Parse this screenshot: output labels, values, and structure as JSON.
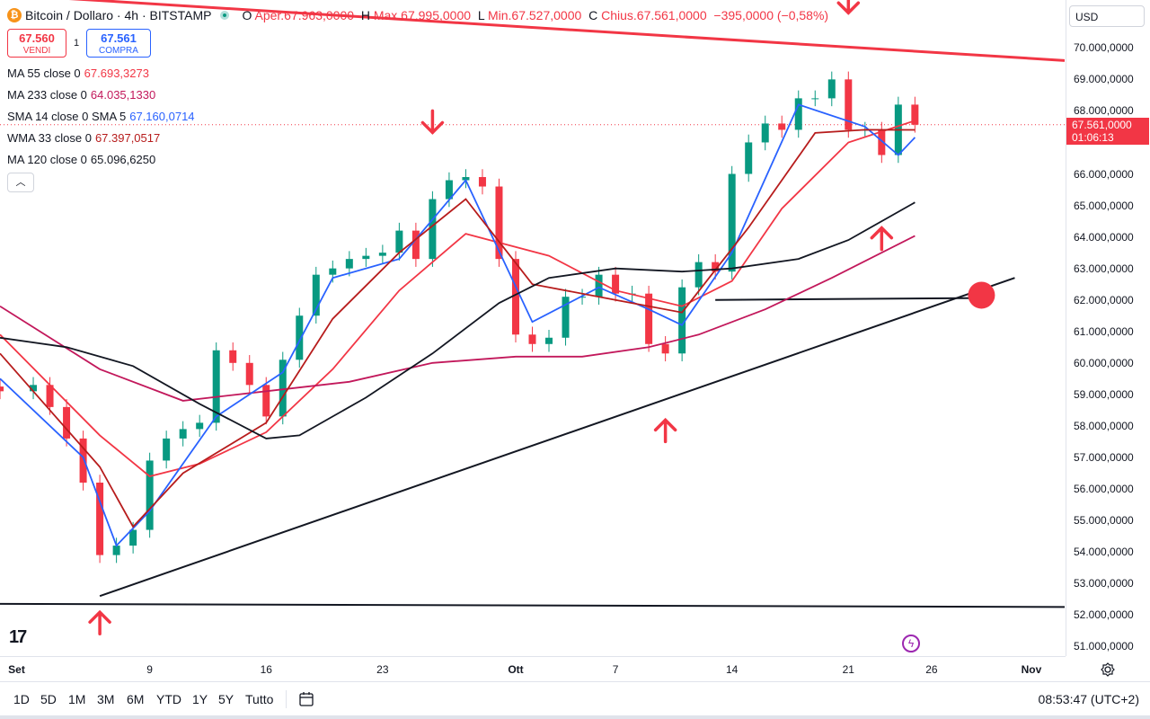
{
  "header": {
    "symbol_title": "Bitcoin / Dollaro · 4h · BITSTAMP",
    "ohlc": [
      {
        "label": "O",
        "value": "Aper.67.963,0000"
      },
      {
        "label": "H",
        "value": "Max.67.995,0000"
      },
      {
        "label": "L",
        "value": "Min.67.527,0000"
      },
      {
        "label": "C",
        "value": "Chius.67.561,0000"
      }
    ],
    "change": "−395,0000 (−0,58%)",
    "icons": {
      "symbol": "bitcoin-icon",
      "status": "market-open-dot-icon"
    }
  },
  "trade": {
    "sell_price": "67.560",
    "sell_label": "VENDI",
    "spread": "1",
    "buy_price": "67.561",
    "buy_label": "COMPRA"
  },
  "indicators": [
    {
      "name": "MA 55 close 0",
      "value": "67.693,3273",
      "color": "#f23645"
    },
    {
      "name": "MA 233 close 0",
      "value": "64.035,1330",
      "color": "#c2185b"
    },
    {
      "name": "SMA 14 close 0 SMA 5",
      "value": "67.160,0714",
      "color": "#2962ff"
    },
    {
      "name": "WMA 33 close 0",
      "value": "67.397,0517",
      "color": "#b71c1c"
    },
    {
      "name": "MA 120 close 0",
      "value": "65.096,6250",
      "color": "#131722"
    }
  ],
  "price_axis": {
    "currency": "USD",
    "labels": [
      {
        "text": "70.000,0000",
        "value": 70000
      },
      {
        "text": "69.000,0000",
        "value": 69000
      },
      {
        "text": "68.000,0000",
        "value": 68000
      },
      {
        "text": "66.000,0000",
        "value": 66000
      },
      {
        "text": "65.000,0000",
        "value": 65000
      },
      {
        "text": "64.000,0000",
        "value": 64000
      },
      {
        "text": "63.000,0000",
        "value": 63000
      },
      {
        "text": "62.000,0000",
        "value": 62000
      },
      {
        "text": "61.000,0000",
        "value": 61000
      },
      {
        "text": "60.000,0000",
        "value": 60000
      },
      {
        "text": "59.000,0000",
        "value": 59000
      },
      {
        "text": "58.000,0000",
        "value": 58000
      },
      {
        "text": "57.000,0000",
        "value": 57000
      },
      {
        "text": "56.000,0000",
        "value": 56000
      },
      {
        "text": "55.000,0000",
        "value": 55000
      },
      {
        "text": "54.000,0000",
        "value": 54000
      },
      {
        "text": "53.000,0000",
        "value": 53000
      },
      {
        "text": "52.000,0000",
        "value": 52000
      },
      {
        "text": "51.000,0000",
        "value": 51000
      }
    ],
    "current_price": "67.561,0000",
    "countdown": "01:06:13",
    "current_value": 67561
  },
  "time_axis": [
    {
      "text": "Set",
      "date": "2024-09-01"
    },
    {
      "text": "9",
      "date": "2024-09-09"
    },
    {
      "text": "16",
      "date": "2024-09-16"
    },
    {
      "text": "23",
      "date": "2024-09-23"
    },
    {
      "text": "Ott",
      "date": "2024-10-01"
    },
    {
      "text": "7",
      "date": "2024-10-07"
    },
    {
      "text": "14",
      "date": "2024-10-14"
    },
    {
      "text": "21",
      "date": "2024-10-21"
    },
    {
      "text": "26",
      "date": "2024-10-26"
    },
    {
      "text": "Nov",
      "date": "2024-11-01"
    }
  ],
  "range_buttons": [
    "1D",
    "5D",
    "1M",
    "3M",
    "6M",
    "YTD",
    "1Y",
    "5Y",
    "Tutto"
  ],
  "clock": "08:53:47 (UTC+2)",
  "colors": {
    "up": "#089981",
    "down": "#f23645",
    "accent": "#2962ff",
    "annotation": "#f23645"
  },
  "chart_data": {
    "type": "candlestick",
    "close_series": [
      {
        "date": "2024-08-31",
        "close": 59100
      },
      {
        "date": "2024-09-02",
        "close": 59300
      },
      {
        "date": "2024-09-03",
        "close": 58600
      },
      {
        "date": "2024-09-04",
        "close": 57600
      },
      {
        "date": "2024-09-05",
        "close": 56200
      },
      {
        "date": "2024-09-06",
        "close": 53900
      },
      {
        "date": "2024-09-07",
        "close": 54200
      },
      {
        "date": "2024-09-08",
        "close": 54700
      },
      {
        "date": "2024-09-09",
        "close": 56900
      },
      {
        "date": "2024-09-10",
        "close": 57600
      },
      {
        "date": "2024-09-11",
        "close": 57900
      },
      {
        "date": "2024-09-12",
        "close": 58100
      },
      {
        "date": "2024-09-13",
        "close": 60400
      },
      {
        "date": "2024-09-14",
        "close": 60000
      },
      {
        "date": "2024-09-15",
        "close": 59300
      },
      {
        "date": "2024-09-16",
        "close": 58300
      },
      {
        "date": "2024-09-17",
        "close": 60100
      },
      {
        "date": "2024-09-18",
        "close": 61500
      },
      {
        "date": "2024-09-19",
        "close": 62800
      },
      {
        "date": "2024-09-20",
        "close": 63000
      },
      {
        "date": "2024-09-21",
        "close": 63300
      },
      {
        "date": "2024-09-22",
        "close": 63400
      },
      {
        "date": "2024-09-23",
        "close": 63500
      },
      {
        "date": "2024-09-24",
        "close": 64200
      },
      {
        "date": "2024-09-25",
        "close": 63300
      },
      {
        "date": "2024-09-26",
        "close": 65200
      },
      {
        "date": "2024-09-27",
        "close": 65800
      },
      {
        "date": "2024-09-28",
        "close": 65900
      },
      {
        "date": "2024-09-29",
        "close": 65600
      },
      {
        "date": "2024-09-30",
        "close": 63300
      },
      {
        "date": "2024-10-01",
        "close": 60900
      },
      {
        "date": "2024-10-02",
        "close": 60600
      },
      {
        "date": "2024-10-03",
        "close": 60800
      },
      {
        "date": "2024-10-04",
        "close": 62100
      },
      {
        "date": "2024-10-05",
        "close": 62100
      },
      {
        "date": "2024-10-06",
        "close": 62800
      },
      {
        "date": "2024-10-07",
        "close": 62200
      },
      {
        "date": "2024-10-08",
        "close": 62200
      },
      {
        "date": "2024-10-09",
        "close": 60600
      },
      {
        "date": "2024-10-10",
        "close": 60300
      },
      {
        "date": "2024-10-11",
        "close": 62400
      },
      {
        "date": "2024-10-12",
        "close": 63200
      },
      {
        "date": "2024-10-13",
        "close": 62900
      },
      {
        "date": "2024-10-14",
        "close": 66000
      },
      {
        "date": "2024-10-15",
        "close": 67000
      },
      {
        "date": "2024-10-16",
        "close": 67600
      },
      {
        "date": "2024-10-17",
        "close": 67400
      },
      {
        "date": "2024-10-18",
        "close": 68400
      },
      {
        "date": "2024-10-19",
        "close": 68400
      },
      {
        "date": "2024-10-20",
        "close": 69000
      },
      {
        "date": "2024-10-21",
        "close": 67400
      },
      {
        "date": "2024-10-22",
        "close": 67400
      },
      {
        "date": "2024-10-23",
        "close": 66600
      },
      {
        "date": "2024-10-24",
        "close": 68200
      },
      {
        "date": "2024-10-25",
        "close": 67561
      }
    ],
    "moving_averages": [
      {
        "name": "MA 55 close 0",
        "color": "#f23645",
        "points": [
          [
            "2024-08-31",
            60900
          ],
          [
            "2024-09-06",
            57700
          ],
          [
            "2024-09-09",
            56400
          ],
          [
            "2024-09-12",
            56800
          ],
          [
            "2024-09-16",
            57800
          ],
          [
            "2024-09-20",
            59800
          ],
          [
            "2024-09-24",
            62300
          ],
          [
            "2024-09-28",
            64100
          ],
          [
            "2024-10-03",
            63400
          ],
          [
            "2024-10-07",
            62300
          ],
          [
            "2024-10-11",
            61800
          ],
          [
            "2024-10-14",
            62600
          ],
          [
            "2024-10-17",
            64900
          ],
          [
            "2024-10-21",
            67000
          ],
          [
            "2024-10-25",
            67693
          ]
        ]
      },
      {
        "name": "MA 233 close 0",
        "color": "#c2185b",
        "points": [
          [
            "2024-08-31",
            61800
          ],
          [
            "2024-09-06",
            59800
          ],
          [
            "2024-09-11",
            58800
          ],
          [
            "2024-09-16",
            59100
          ],
          [
            "2024-09-21",
            59400
          ],
          [
            "2024-09-26",
            60000
          ],
          [
            "2024-10-01",
            60200
          ],
          [
            "2024-10-05",
            60200
          ],
          [
            "2024-10-09",
            60500
          ],
          [
            "2024-10-12",
            60900
          ],
          [
            "2024-10-16",
            61700
          ],
          [
            "2024-10-20",
            62700
          ],
          [
            "2024-10-25",
            64035
          ]
        ]
      },
      {
        "name": "SMA 14 close 0 SMA 5",
        "color": "#2962ff",
        "points": [
          [
            "2024-08-31",
            59500
          ],
          [
            "2024-09-05",
            57000
          ],
          [
            "2024-09-07",
            54200
          ],
          [
            "2024-09-09",
            55300
          ],
          [
            "2024-09-13",
            58300
          ],
          [
            "2024-09-17",
            59700
          ],
          [
            "2024-09-20",
            62700
          ],
          [
            "2024-09-24",
            63300
          ],
          [
            "2024-09-28",
            65800
          ],
          [
            "2024-10-02",
            61300
          ],
          [
            "2024-10-06",
            62400
          ],
          [
            "2024-10-09",
            61700
          ],
          [
            "2024-10-11",
            61200
          ],
          [
            "2024-10-14",
            63500
          ],
          [
            "2024-10-18",
            68200
          ],
          [
            "2024-10-22",
            67500
          ],
          [
            "2024-10-24",
            66600
          ],
          [
            "2024-10-25",
            67160
          ]
        ]
      },
      {
        "name": "WMA 33 close 0",
        "color": "#b71c1c",
        "points": [
          [
            "2024-08-31",
            60300
          ],
          [
            "2024-09-06",
            56700
          ],
          [
            "2024-09-08",
            54800
          ],
          [
            "2024-09-11",
            56500
          ],
          [
            "2024-09-16",
            58100
          ],
          [
            "2024-09-20",
            61400
          ],
          [
            "2024-09-24",
            63500
          ],
          [
            "2024-09-28",
            65200
          ],
          [
            "2024-10-02",
            62500
          ],
          [
            "2024-10-07",
            62000
          ],
          [
            "2024-10-11",
            61600
          ],
          [
            "2024-10-15",
            64300
          ],
          [
            "2024-10-19",
            67300
          ],
          [
            "2024-10-22",
            67400
          ],
          [
            "2024-10-25",
            67397
          ]
        ]
      },
      {
        "name": "MA 120 close 0",
        "color": "#131722",
        "points": [
          [
            "2024-08-31",
            60800
          ],
          [
            "2024-09-04",
            60500
          ],
          [
            "2024-09-08",
            59900
          ],
          [
            "2024-09-12",
            58700
          ],
          [
            "2024-09-16",
            57600
          ],
          [
            "2024-09-18",
            57700
          ],
          [
            "2024-09-22",
            58900
          ],
          [
            "2024-09-26",
            60300
          ],
          [
            "2024-09-30",
            61900
          ],
          [
            "2024-10-03",
            62700
          ],
          [
            "2024-10-07",
            63000
          ],
          [
            "2024-10-11",
            62900
          ],
          [
            "2024-10-14",
            63000
          ],
          [
            "2024-10-18",
            63300
          ],
          [
            "2024-10-21",
            63900
          ],
          [
            "2024-10-25",
            65096
          ]
        ]
      }
    ],
    "trendlines": [
      {
        "name": "descending-resistance",
        "color": "#f23645",
        "points": [
          [
            "2024-08-31",
            71700
          ],
          [
            "2024-11-03",
            69600
          ]
        ]
      },
      {
        "name": "ascending-support",
        "color": "#131722",
        "points": [
          [
            "2024-09-06",
            52600
          ],
          [
            "2024-10-31",
            62700
          ]
        ]
      },
      {
        "name": "horizontal-support",
        "color": "#131722",
        "points": [
          [
            "2024-08-31",
            52350
          ],
          [
            "2024-11-03",
            52250
          ]
        ]
      },
      {
        "name": "horizontal-level",
        "color": "#131722",
        "points": [
          [
            "2024-10-13",
            62000
          ],
          [
            "2024-10-29",
            62060
          ]
        ]
      }
    ],
    "markers": [
      {
        "type": "arrow-down",
        "date": "2024-09-26",
        "value": 67600
      },
      {
        "type": "arrow-down",
        "date": "2024-10-21",
        "value": 71400
      },
      {
        "type": "arrow-up",
        "date": "2024-09-06",
        "value": 51800
      },
      {
        "type": "arrow-up",
        "date": "2024-10-10",
        "value": 57900
      },
      {
        "type": "arrow-up",
        "date": "2024-10-23",
        "value": 64000
      },
      {
        "type": "dot",
        "date": "2024-10-29",
        "value": 62150
      }
    ],
    "xlim": [
      "2024-08-31",
      "2024-11-03"
    ],
    "ylim": [
      50750,
      71350
    ],
    "ylabel": "",
    "xlabel": "",
    "title": ""
  }
}
